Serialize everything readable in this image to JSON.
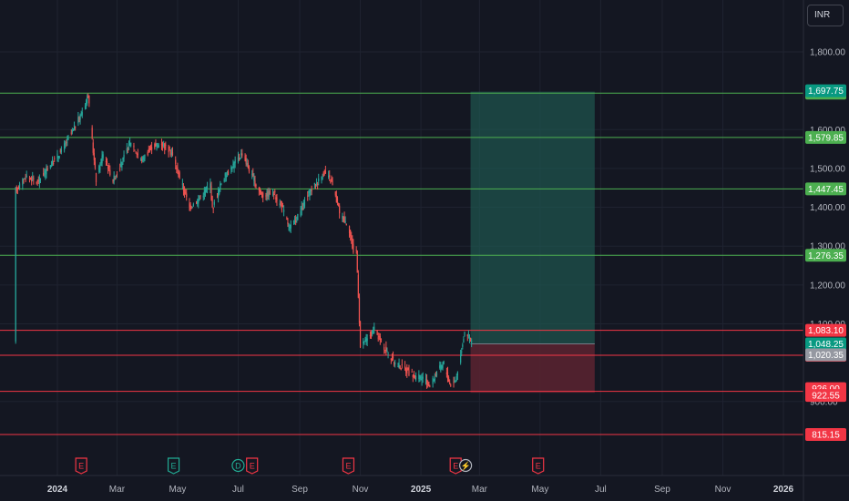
{
  "currency_label": "INR",
  "chart_data": {
    "type": "candlestick",
    "title": "",
    "xlabel": "",
    "ylabel": "",
    "ylim": [
      785,
      1870
    ],
    "y_ticks": [
      "1,800.00",
      "1,600.00",
      "1,500.00",
      "1,400.00",
      "1,300.00",
      "1,200.00",
      "1,100.00",
      "900.00"
    ],
    "x_ticks": [
      {
        "label": "2024",
        "date": "2024-01-01",
        "bold": true
      },
      {
        "label": "Mar",
        "date": "2024-03-01",
        "bold": false
      },
      {
        "label": "May",
        "date": "2024-05-01",
        "bold": false
      },
      {
        "label": "Jul",
        "date": "2024-07-01",
        "bold": false
      },
      {
        "label": "Sep",
        "date": "2024-09-01",
        "bold": false
      },
      {
        "label": "Nov",
        "date": "2024-11-01",
        "bold": false
      },
      {
        "label": "2025",
        "date": "2025-01-01",
        "bold": true
      },
      {
        "label": "Mar",
        "date": "2025-03-01",
        "bold": false
      },
      {
        "label": "May",
        "date": "2025-05-01",
        "bold": false
      },
      {
        "label": "Jul",
        "date": "2025-07-01",
        "bold": false
      },
      {
        "label": "Sep",
        "date": "2025-09-01",
        "bold": false
      },
      {
        "label": "Nov",
        "date": "2025-11-01",
        "bold": false
      },
      {
        "label": "2026",
        "date": "2026-01-01",
        "bold": true
      }
    ],
    "price_path": [
      [
        "2023-11-20",
        1445
      ],
      [
        "2023-12-01",
        1480
      ],
      [
        "2023-12-12",
        1465
      ],
      [
        "2023-12-22",
        1500
      ],
      [
        "2024-01-05",
        1545
      ],
      [
        "2024-01-15",
        1590
      ],
      [
        "2024-01-25",
        1640
      ],
      [
        "2024-02-01",
        1690
      ],
      [
        "2024-02-05",
        1570
      ],
      [
        "2024-02-09",
        1470
      ],
      [
        "2024-02-16",
        1540
      ],
      [
        "2024-02-26",
        1470
      ],
      [
        "2024-03-05",
        1510
      ],
      [
        "2024-03-15",
        1570
      ],
      [
        "2024-03-25",
        1520
      ],
      [
        "2024-04-05",
        1555
      ],
      [
        "2024-04-15",
        1565
      ],
      [
        "2024-04-25",
        1540
      ],
      [
        "2024-05-06",
        1455
      ],
      [
        "2024-05-13",
        1400
      ],
      [
        "2024-05-22",
        1420
      ],
      [
        "2024-06-03",
        1460
      ],
      [
        "2024-06-05",
        1395
      ],
      [
        "2024-06-15",
        1470
      ],
      [
        "2024-06-25",
        1505
      ],
      [
        "2024-07-05",
        1540
      ],
      [
        "2024-07-15",
        1480
      ],
      [
        "2024-07-25",
        1430
      ],
      [
        "2024-08-05",
        1440
      ],
      [
        "2024-08-15",
        1395
      ],
      [
        "2024-08-22",
        1345
      ],
      [
        "2024-09-01",
        1385
      ],
      [
        "2024-09-10",
        1435
      ],
      [
        "2024-09-20",
        1470
      ],
      [
        "2024-09-26",
        1490
      ],
      [
        "2024-10-03",
        1465
      ],
      [
        "2024-10-12",
        1380
      ],
      [
        "2024-10-20",
        1355
      ],
      [
        "2024-10-25",
        1285
      ],
      [
        "2024-10-28",
        1290
      ],
      [
        "2024-10-30",
        1175
      ],
      [
        "2024-11-01",
        1040
      ],
      [
        "2024-11-08",
        1060
      ],
      [
        "2024-11-15",
        1085
      ],
      [
        "2024-11-25",
        1040
      ],
      [
        "2024-12-05",
        1000
      ],
      [
        "2024-12-15",
        985
      ],
      [
        "2024-12-25",
        965
      ],
      [
        "2025-01-03",
        960
      ],
      [
        "2025-01-10",
        940
      ],
      [
        "2025-01-17",
        975
      ],
      [
        "2025-01-24",
        1000
      ],
      [
        "2025-01-30",
        945
      ],
      [
        "2025-02-05",
        955
      ],
      [
        "2025-02-10",
        1020
      ],
      [
        "2025-02-14",
        1082
      ],
      [
        "2025-02-18",
        1070
      ],
      [
        "2025-02-22",
        1048
      ]
    ],
    "levels": [
      {
        "value": 1693.95,
        "label": "1,693.95",
        "color": "#4caf50"
      },
      {
        "value": 1579.85,
        "label": "1,579.85",
        "color": "#4caf50"
      },
      {
        "value": 1447.45,
        "label": "1,447.45",
        "color": "#4caf50"
      },
      {
        "value": 1276.35,
        "label": "1,276.35",
        "color": "#4caf50"
      },
      {
        "value": 1083.1,
        "label": "1,083.10",
        "color": "#f23645"
      },
      {
        "value": 1019.15,
        "label": "1,019.15",
        "color": "#f23645"
      },
      {
        "value": 926.0,
        "label": "926.00",
        "color": "#f23645"
      },
      {
        "value": 815.15,
        "label": "815.15",
        "color": "#f23645"
      }
    ],
    "position": {
      "entry": 1048.25,
      "target": 1697.75,
      "stop": 922.55,
      "start_date": "2025-02-20",
      "end_date": "2025-06-25",
      "entry_label": "1,048.25",
      "target_label": "1,697.75",
      "stop_label": "922.55"
    },
    "last_price": {
      "value": 1020.35,
      "label": "1,020.35"
    },
    "events": [
      {
        "date": "2024-01-25",
        "letter": "E",
        "kind": "earnings"
      },
      {
        "date": "2024-04-27",
        "letter": "E",
        "kind": "earnings-positive"
      },
      {
        "date": "2024-07-01",
        "letter": "D",
        "kind": "dividend"
      },
      {
        "date": "2024-07-15",
        "letter": "E",
        "kind": "earnings"
      },
      {
        "date": "2024-10-20",
        "letter": "E",
        "kind": "earnings"
      },
      {
        "date": "2025-02-05",
        "letter": "E",
        "kind": "earnings"
      },
      {
        "date": "2025-02-15",
        "letter": "⚡",
        "kind": "split"
      },
      {
        "date": "2025-04-29",
        "letter": "E",
        "kind": "earnings-future"
      }
    ],
    "colors": {
      "up": "#26a69a",
      "down": "#ef5350",
      "target_zone": "#1f5b53",
      "stop_zone": "#5a2330",
      "last_price": "#9598a1"
    }
  }
}
